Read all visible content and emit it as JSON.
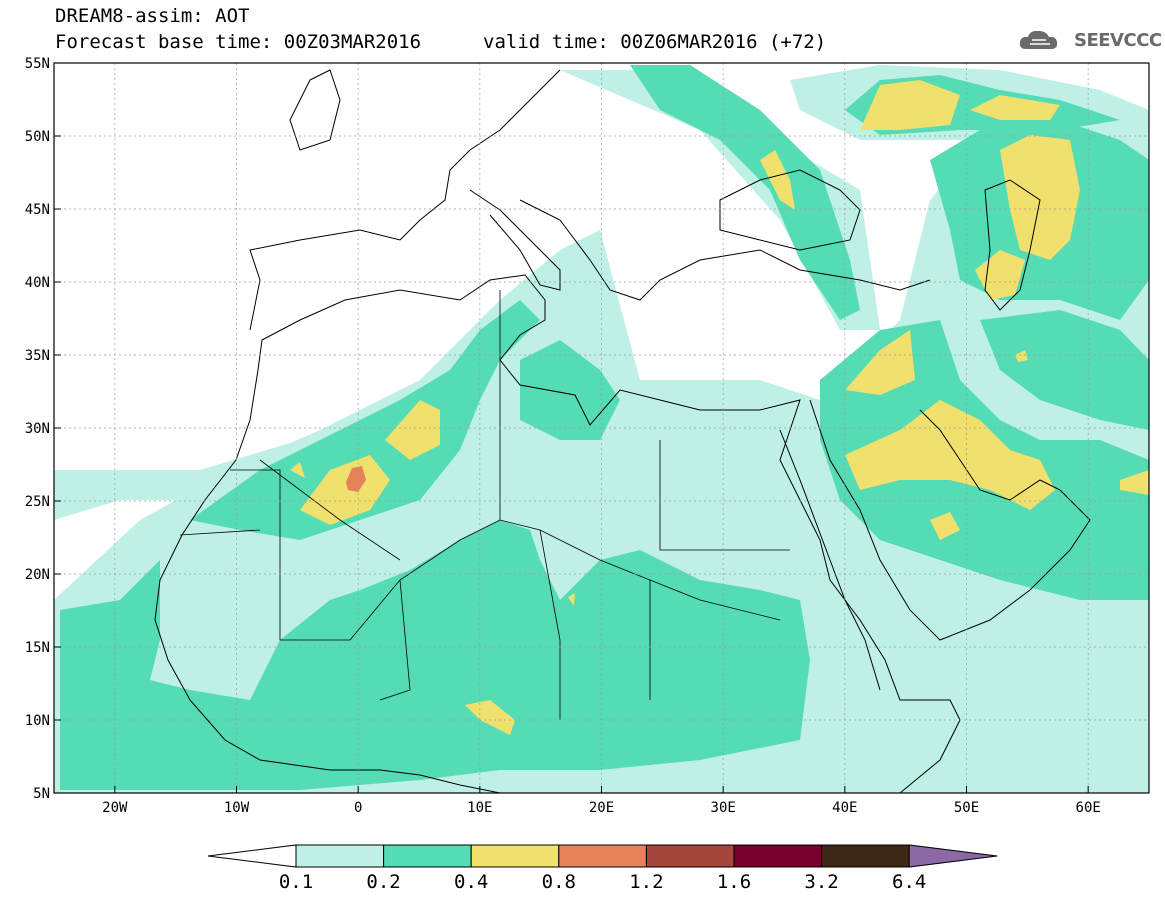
{
  "header": {
    "model_line": "DREAM8-assim: AOT",
    "base_line": "Forecast base time: 00Z03MAR2016",
    "valid_line": "valid time: 00Z06MAR2016 (+72)"
  },
  "logo": {
    "text": "SEEVCCC",
    "icon": "cloud-icon"
  },
  "map": {
    "lat_labels": [
      "55N",
      "50N",
      "45N",
      "40N",
      "35N",
      "30N",
      "25N",
      "20N",
      "15N",
      "10N",
      "5N"
    ],
    "lat_values": [
      55,
      50,
      45,
      40,
      35,
      30,
      25,
      20,
      15,
      10,
      5
    ],
    "lon_labels": [
      "20W",
      "10W",
      "0",
      "10E",
      "20E",
      "30E",
      "40E",
      "50E",
      "60E"
    ],
    "lon_values": [
      -20,
      -10,
      0,
      10,
      20,
      30,
      40,
      50,
      60
    ],
    "lon_range": [
      -25,
      65
    ],
    "lat_range": [
      5,
      55
    ],
    "field": "Aerosol Optical Thickness"
  },
  "colorbar": {
    "labels": [
      "0.1",
      "0.2",
      "0.4",
      "0.8",
      "1.2",
      "1.6",
      "3.2",
      "6.4"
    ],
    "colors": [
      "#bef0e6",
      "#55dcb4",
      "#f0e16e",
      "#e6825a",
      "#a5463c",
      "#78002d",
      "#3c2814",
      "#8c69a5"
    ],
    "under_color": "#ffffff"
  }
}
